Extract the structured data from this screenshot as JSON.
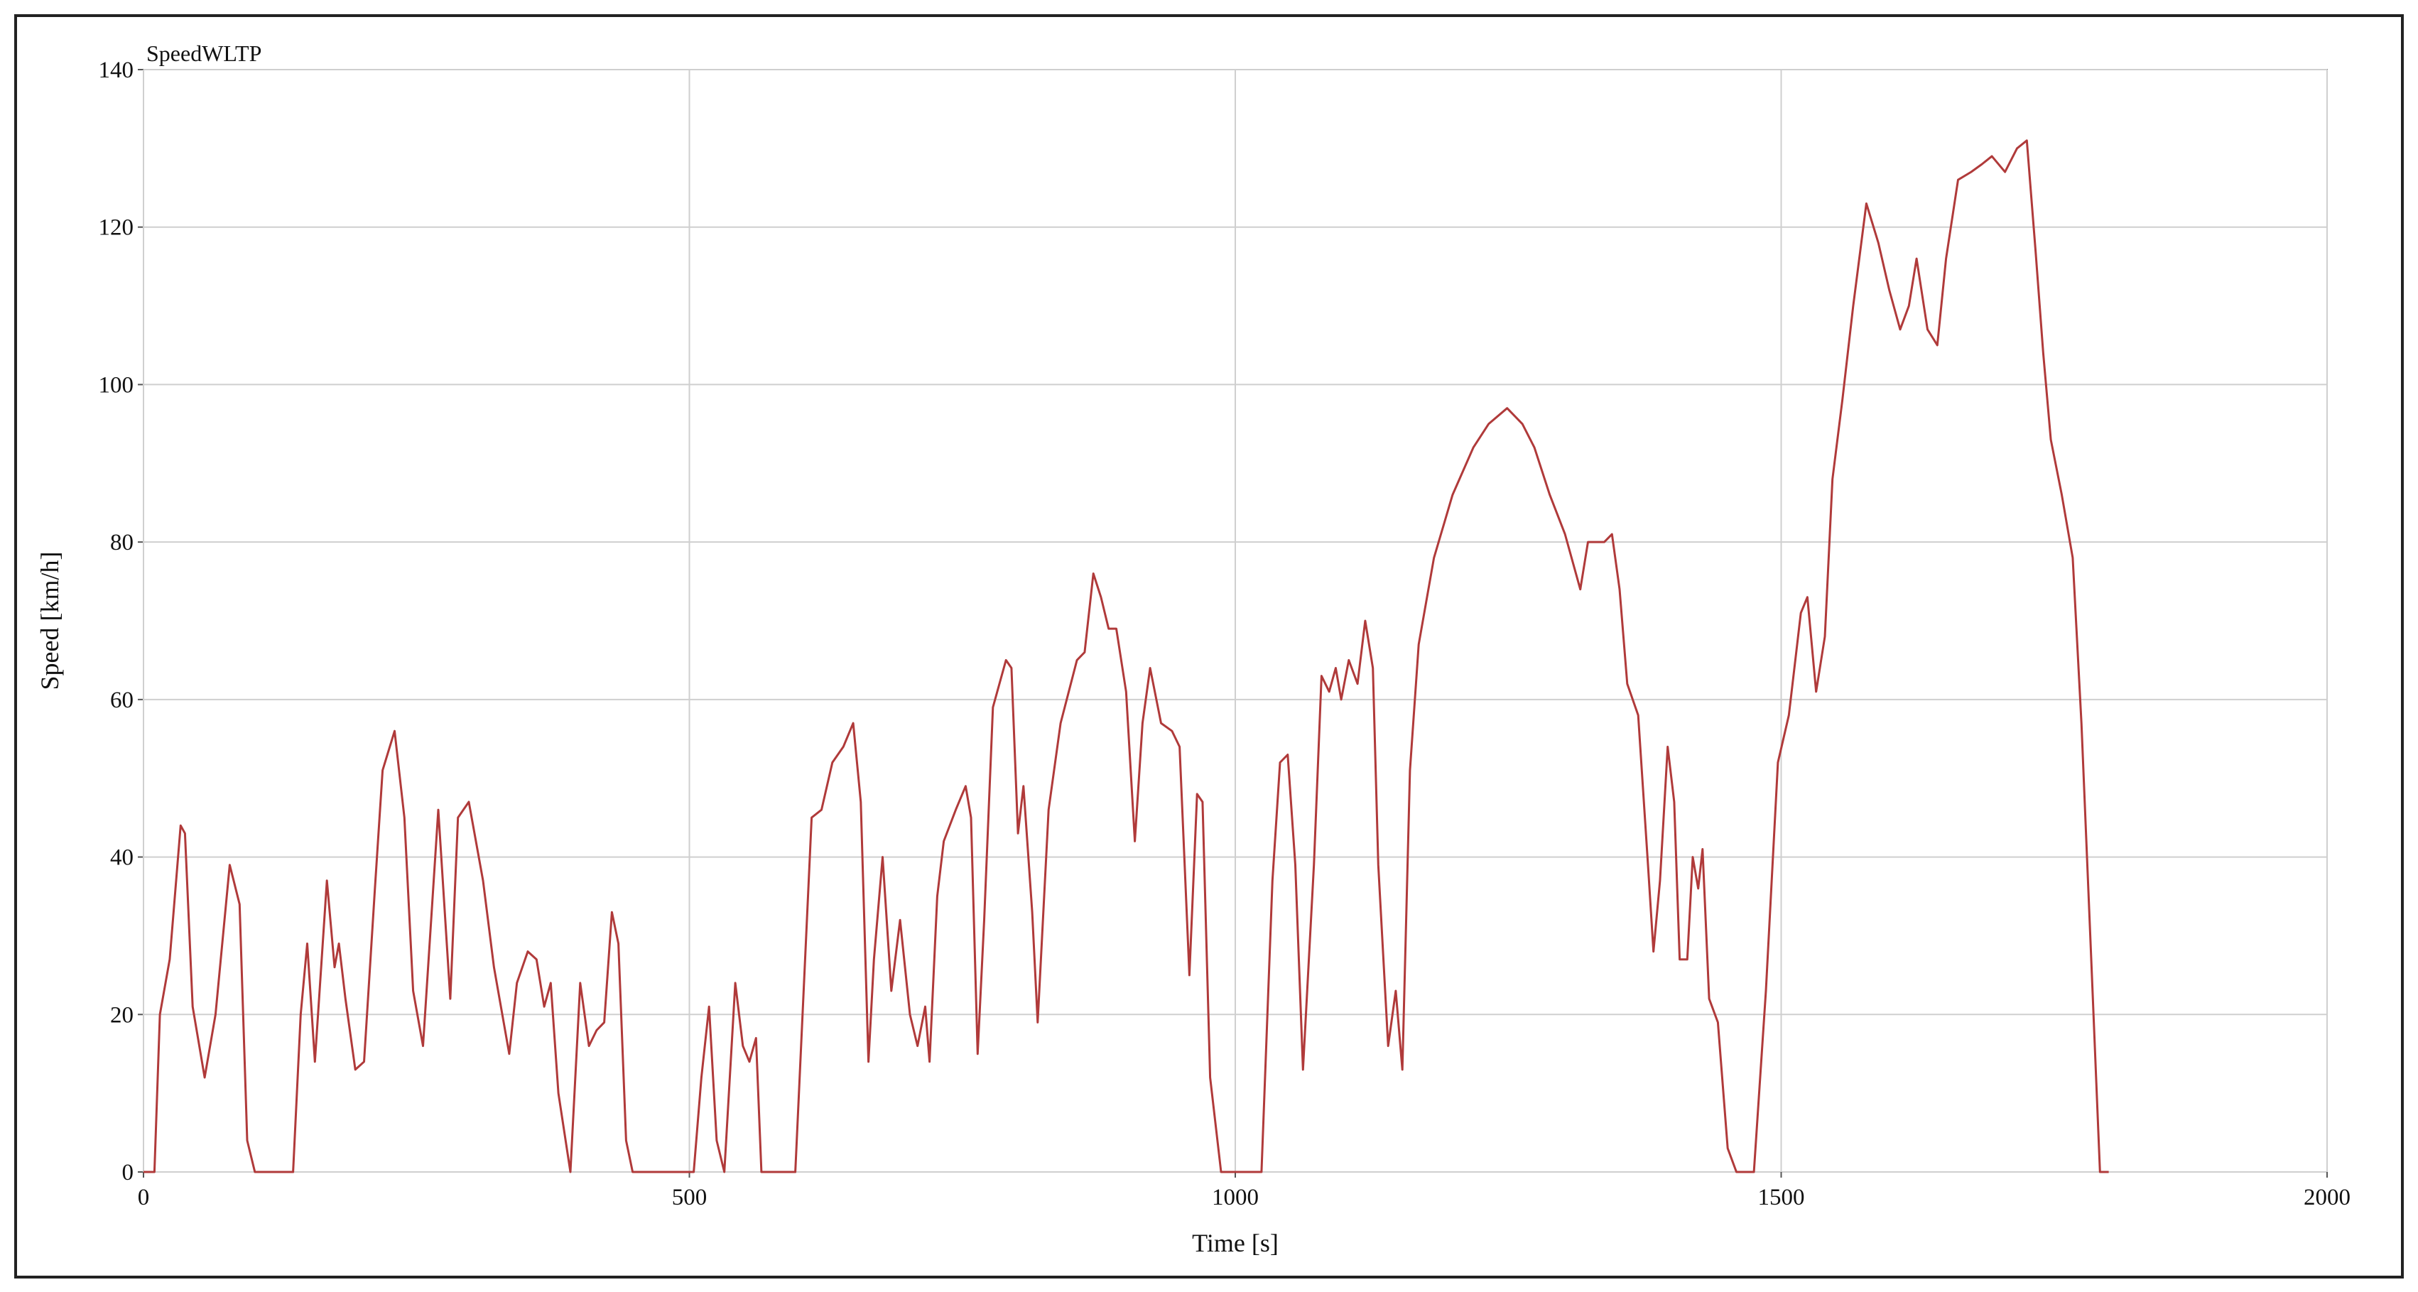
{
  "chart_data": {
    "type": "line",
    "title": "SpeedWLTP",
    "x_label": "Time [s]",
    "y_label": "Speed [km/h]",
    "color": "#b03a3a",
    "grid": true,
    "xlim": [
      0,
      2000
    ],
    "xticks": [
      0,
      500,
      1000,
      1500,
      2000
    ],
    "ylim": [
      0,
      140
    ],
    "yticks": [
      0,
      20,
      40,
      60,
      80,
      100,
      120,
      140
    ],
    "x": [
      0,
      10,
      15,
      24,
      34,
      38,
      45,
      56,
      66,
      79,
      88,
      95,
      102,
      117,
      137,
      144,
      150,
      157,
      168,
      175,
      179,
      185,
      194,
      202,
      212,
      219,
      230,
      239,
      247,
      256,
      270,
      281,
      288,
      298,
      311,
      321,
      335,
      342,
      352,
      360,
      367,
      373,
      380,
      391,
      400,
      408,
      415,
      422,
      429,
      435,
      442,
      448,
      504,
      511,
      518,
      525,
      532,
      537,
      542,
      549,
      555,
      561,
      566,
      597,
      612,
      621,
      631,
      641,
      650,
      657,
      664,
      669,
      677,
      685,
      693,
      702,
      709,
      716,
      720,
      727,
      733,
      744,
      753,
      758,
      764,
      770,
      778,
      790,
      795,
      801,
      806,
      814,
      819,
      829,
      840,
      855,
      862,
      870,
      877,
      884,
      891,
      900,
      908,
      915,
      922,
      932,
      942,
      949,
      958,
      965,
      970,
      977,
      987,
      1024,
      1034,
      1041,
      1048,
      1055,
      1062,
      1072,
      1079,
      1086,
      1092,
      1097,
      1104,
      1112,
      1119,
      1126,
      1131,
      1140,
      1147,
      1153,
      1160,
      1168,
      1182,
      1199,
      1218,
      1232,
      1249,
      1263,
      1274,
      1288,
      1302,
      1316,
      1323,
      1338,
      1345,
      1352,
      1359,
      1369,
      1378,
      1383,
      1389,
      1396,
      1402,
      1407,
      1414,
      1419,
      1424,
      1428,
      1434,
      1442,
      1451,
      1459,
      1475,
      1486,
      1497,
      1507,
      1518,
      1524,
      1532,
      1540,
      1547,
      1556,
      1566,
      1578,
      1589,
      1599,
      1609,
      1617,
      1624,
      1634,
      1643,
      1651,
      1662,
      1674,
      1684,
      1693,
      1705,
      1716,
      1725,
      1733,
      1740,
      1747,
      1757,
      1767,
      1775,
      1784,
      1792,
      1800
    ],
    "values": [
      0,
      0,
      20,
      27,
      44,
      43,
      21,
      12,
      20,
      39,
      34,
      4,
      0,
      0,
      0,
      20,
      29,
      14,
      37,
      26,
      29,
      22,
      13,
      14,
      36,
      51,
      56,
      45,
      23,
      16,
      46,
      22,
      45,
      47,
      37,
      26,
      15,
      24,
      28,
      27,
      21,
      24,
      10,
      0,
      24,
      16,
      18,
      19,
      33,
      29,
      4,
      0,
      0,
      12,
      21,
      4,
      0,
      12,
      24,
      16,
      14,
      17,
      0,
      0,
      45,
      46,
      52,
      54,
      57,
      47,
      14,
      27,
      40,
      23,
      32,
      20,
      16,
      21,
      14,
      35,
      42,
      46,
      49,
      45,
      15,
      32,
      59,
      65,
      64,
      43,
      49,
      33,
      19,
      46,
      57,
      65,
      66,
      76,
      73,
      69,
      69,
      61,
      42,
      57,
      64,
      57,
      56,
      54,
      25,
      48,
      47,
      12,
      0,
      0,
      37,
      52,
      53,
      39,
      13,
      39,
      63,
      61,
      64,
      60,
      65,
      62,
      70,
      64,
      39,
      16,
      23,
      13,
      51,
      67,
      78,
      86,
      92,
      95,
      97,
      95,
      92,
      86,
      81,
      74,
      80,
      80,
      81,
      74,
      62,
      58,
      39,
      28,
      37,
      54,
      47,
      27,
      27,
      40,
      36,
      41,
      22,
      19,
      3,
      0,
      0,
      23,
      52,
      58,
      71,
      73,
      61,
      68,
      88,
      98,
      110,
      123,
      118,
      112,
      107,
      110,
      116,
      107,
      105,
      116,
      126,
      127,
      128,
      129,
      127,
      130,
      131,
      117,
      104,
      93,
      86,
      78,
      57,
      27,
      0,
      0
    ]
  }
}
